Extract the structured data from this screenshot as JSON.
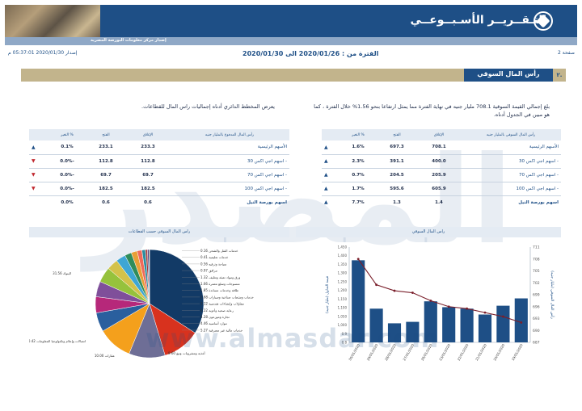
{
  "header": {
    "title": "التـقــريــر الأسـبــوعــي",
    "subtitle": "إصدار مركز معلومات البورصة المصرية",
    "page": "صفحة 2",
    "period": "الفترة من : 2020/01/26 الى 2020/01/30",
    "issue": "إصدار 2020/01/30 05:37:01 م"
  },
  "section": {
    "number": "٢.",
    "title": "رأس المال السوقي"
  },
  "paragraphs": {
    "right": "بلغ إجمالي القيمة السوقية 708.1 مليار جنيه في نهاية الفترة مما يمثل ارتفاعا بنحو 1.56% خلال الفترة ، كما هو مبين في الجدول أدناه.",
    "left": "يعرض المخطط الدائري أدناه إجماليات راس المال للقطاعات."
  },
  "market_cap_table": {
    "headers": [
      "رأس المال السوقي بالمليار جنيه",
      "الإغلاق",
      "الفتح",
      "% التغير"
    ],
    "rows": [
      {
        "label": "الأسهم الرئيسية",
        "close": "708.1",
        "open": "697.3",
        "change": "1.6%",
        "dir": "up"
      },
      {
        "label": "- اسهم اجي اكس 30",
        "close": "400.0",
        "open": "391.1",
        "change": "2.3%",
        "dir": "up"
      },
      {
        "label": "- اسهم اجي اكس 70",
        "close": "205.9",
        "open": "204.5",
        "change": "0.7%",
        "dir": "up"
      },
      {
        "label": "- اسهم اجي اكس 100",
        "close": "605.9",
        "open": "595.6",
        "change": "1.7%",
        "dir": "up"
      },
      {
        "label": "اسهم بورصة النيل",
        "close": "1.4",
        "open": "1.3",
        "change": "7.7%",
        "dir": "up"
      }
    ]
  },
  "paid_capital_table": {
    "headers": [
      "رأس المال المدفوع بالمليار جنيه",
      "الإغلاق",
      "الفتح",
      "% التغير"
    ],
    "rows": [
      {
        "label": "الأسهم الرئيسية",
        "close": "233.3",
        "open": "233.1",
        "change": "0.1%",
        "dir": "up"
      },
      {
        "label": "- اسهم اجي اكس 30",
        "close": "112.8",
        "open": "112.8",
        "change": "-0.0%",
        "dir": "down"
      },
      {
        "label": "- اسهم اجي اكس 70",
        "close": "69.7",
        "open": "69.7",
        "change": "-0.0%",
        "dir": "down"
      },
      {
        "label": "- اسهم اجي اكس 100",
        "close": "182.5",
        "open": "182.5",
        "change": "-0.0%",
        "dir": "down"
      },
      {
        "label": "اسهم بورصة النيل",
        "close": "0.6",
        "open": "0.6",
        "change": "0.0%",
        "dir": "none"
      }
    ]
  },
  "panels": {
    "sector_pie_title": "راس المال السوقي حسب القطاعات",
    "market_cap_chart_title": "راس المال السوقي"
  },
  "watermark": {
    "text": "المصدر",
    "url": "www.almasdar.com"
  },
  "chart_data": [
    {
      "type": "bar",
      "title": "راس المال السوقي",
      "categories": [
        "30/01/2020",
        "29/01/2020",
        "28/01/2020",
        "27/01/2020",
        "26/01/2020",
        "23/01/2020",
        "22/01/2020",
        "21/01/2020",
        "20/01/2020",
        "19/01/2020"
      ],
      "series": [
        {
          "name": "",
          "values": [
            1.36,
            1.03,
            0.93,
            0.94,
            1.08,
            1.04,
            1.03,
            0.99,
            1.05,
            1.1
          ],
          "style": "bar",
          "axis": "left"
        },
        {
          "name": "",
          "values": [
            708,
            701.5,
            700,
            699.5,
            697.5,
            696,
            695.5,
            694.5,
            693.5,
            692
          ],
          "style": "line",
          "axis": "right"
        }
      ],
      "y_left_label": "قيمة التداول (مليار جنيه)",
      "y_left_ticks": [
        "0.8",
        "0.9",
        "1,000",
        "1,050",
        "1,100",
        "1,150",
        "1,200",
        "1,250",
        "1,300",
        "1,350",
        "1,400",
        "1,450"
      ],
      "ylim_left": [
        0.8,
        1.45
      ],
      "y_right_label": "رأس المال السوقي (مليار جنيه)",
      "y_right_ticks": [
        "687",
        "690",
        "693",
        "696",
        "699",
        "702",
        "705",
        "708",
        "711"
      ],
      "ylim_right": [
        687,
        711
      ],
      "colors": {
        "bar": "#1e4f86",
        "line": "#7a1f2b"
      }
    },
    {
      "type": "pie",
      "title": "راس المال السوقي حسب القطاعات",
      "slices": [
        {
          "label": "البنوك",
          "value": 31.56,
          "color": "#123a66"
        },
        {
          "label": "اتصالات وإعلام وتكنولوجيا المعلومات",
          "value": 10.42,
          "color": "#d8321e"
        },
        {
          "label": "عقارات",
          "value": 10.0,
          "color": "#6e6e96"
        },
        {
          "label": "أغذية ومشروبات وتبغ",
          "value": 9.6,
          "color": "#f4a01c"
        },
        {
          "label": "خدمات مالية غير مصرفية",
          "value": 5.27,
          "color": "#2a5f9e"
        },
        {
          "label": "موارد أساسية",
          "value": 4.46,
          "color": "#b6287a"
        },
        {
          "label": "تجارة وموزعون",
          "value": 4.28,
          "color": "#7f4f9a"
        },
        {
          "label": "رعاية صحية وأدوية",
          "value": 4.22,
          "color": "#96c23c"
        },
        {
          "label": "مقاولات وإنشاءات هندسية",
          "value": 3.12,
          "color": "#d3c24a"
        },
        {
          "label": "خدمات ومنتجات صناعية وسيارات",
          "value": 2.68,
          "color": "#3fa6d4"
        },
        {
          "label": "طاقة وخدمات مساندة",
          "value": 1.85,
          "color": "#2f8c5a"
        },
        {
          "label": "منسوجات وسلع معمرة",
          "value": 1.66,
          "color": "#e89f36"
        },
        {
          "label": "ورق ومواد تعبئة وتغليف",
          "value": 1.32,
          "color": "#f06a5a"
        },
        {
          "label": "مرافق",
          "value": 0.97,
          "color": "#2b8ea0"
        },
        {
          "label": "سياحة وترفيه",
          "value": 0.56,
          "color": "#a53a3a"
        },
        {
          "label": "خدمات تعليمية",
          "value": 0.41,
          "color": "#5a3c82"
        },
        {
          "label": "خدمات النقل والشحن",
          "value": 0.16,
          "color": "#3c7a3c"
        }
      ]
    }
  ]
}
